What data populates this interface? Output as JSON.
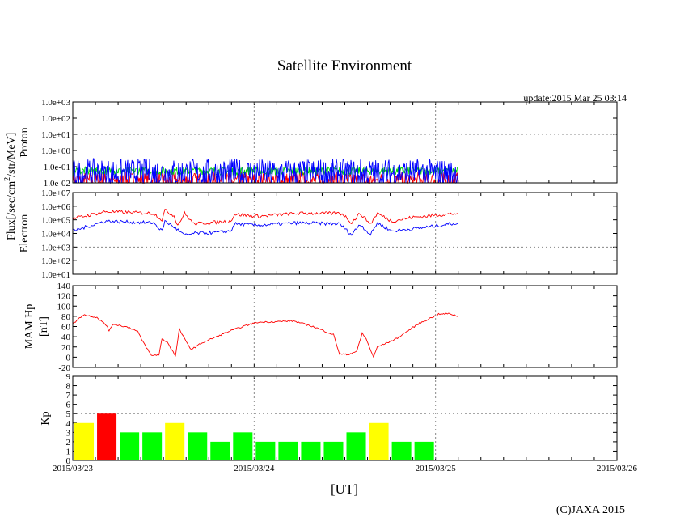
{
  "chart_data": {
    "type": "line",
    "title": "Satellite Environment",
    "update": "update:2015 Mar 25 03:14",
    "xlabel": "[UT]",
    "copyright": "(C)JAXA 2015",
    "x_ticks": [
      "2015/03/23",
      "2015/03/24",
      "2015/03/25",
      "2015/03/26"
    ],
    "x_range_hours": [
      0,
      72
    ],
    "shared_ylabel": "Flux[/sec/cm",
    "shared_ylabel_sup": "2",
    "shared_ylabel_rest": "/str/MeV]",
    "panels": [
      {
        "id": "proton",
        "ylabel": "Proton",
        "scale": "log",
        "ylim": [
          0.01,
          1000
        ],
        "ticks": [
          "1.0e-02",
          "1.0e-01",
          "1.0e+00",
          "1.0e+01",
          "1.0e+02",
          "1.0e+03"
        ],
        "grid_at": 10,
        "series": [
          {
            "name": "red",
            "color": "#ff0000",
            "level": 0.012,
            "spread": 0.6
          },
          {
            "name": "green",
            "color": "#00dd00",
            "level": 0.055,
            "spread": 0.25
          },
          {
            "name": "blue",
            "color": "#0000ff",
            "level": 0.04,
            "spread": 0.9
          }
        ]
      },
      {
        "id": "electron",
        "ylabel": "Electron",
        "scale": "log",
        "ylim": [
          10,
          10000000
        ],
        "ticks": [
          "1.0e+01",
          "1.0e+02",
          "1.0e+03",
          "1.0e+04",
          "1.0e+05",
          "1.0e+06",
          "1.0e+07"
        ],
        "grid_at": 1000,
        "series": [
          {
            "name": "red",
            "color": "#ff0000",
            "points": [
              [
                0,
                120000
              ],
              [
                4.3,
                400000
              ],
              [
                10.7,
                300000
              ],
              [
                11.8,
                100000
              ],
              [
                12.2,
                500000
              ],
              [
                13.4,
                200000
              ],
              [
                13.9,
                40000
              ],
              [
                14.8,
                300000
              ],
              [
                16,
                50000
              ],
              [
                19.3,
                70000
              ],
              [
                20.9,
                80000
              ],
              [
                21.4,
                250000
              ],
              [
                24.6,
                180000
              ],
              [
                29.9,
                300000
              ],
              [
                35.3,
                300000
              ],
              [
                35.8,
                250000
              ],
              [
                36.9,
                60000
              ],
              [
                38,
                300000
              ],
              [
                39.4,
                50000
              ],
              [
                40.3,
                300000
              ],
              [
                42.2,
                80000
              ],
              [
                44.9,
                150000
              ],
              [
                51,
                300000
              ]
            ]
          },
          {
            "name": "blue",
            "color": "#0000ff",
            "points": [
              [
                0,
                15000
              ],
              [
                4.3,
                80000
              ],
              [
                10.7,
                60000
              ],
              [
                11.8,
                15000
              ],
              [
                12.2,
                80000
              ],
              [
                13.4,
                30000
              ],
              [
                14.8,
                7000
              ],
              [
                16,
                10000
              ],
              [
                19.3,
                12000
              ],
              [
                20.9,
                15000
              ],
              [
                21.4,
                50000
              ],
              [
                24.6,
                40000
              ],
              [
                29.9,
                60000
              ],
              [
                35.3,
                50000
              ],
              [
                36.9,
                8000
              ],
              [
                38,
                50000
              ],
              [
                39.4,
                8000
              ],
              [
                40.3,
                60000
              ],
              [
                42.2,
                15000
              ],
              [
                46,
                25000
              ],
              [
                51,
                60000
              ]
            ]
          }
        ]
      },
      {
        "id": "mam",
        "ylabel": "MAM Hp",
        "ylabel2": "[nT]",
        "scale": "linear",
        "ylim": [
          -20,
          140
        ],
        "ticks": [
          "-20",
          "0",
          "20",
          "40",
          "60",
          "80",
          "100",
          "120",
          "140"
        ],
        "series": [
          {
            "name": "Hp",
            "color": "#ff0000",
            "points": [
              [
                0,
                65
              ],
              [
                1.4,
                83
              ],
              [
                3.2,
                78
              ],
              [
                4.6,
                60
              ],
              [
                4.8,
                50
              ],
              [
                5.3,
                65
              ],
              [
                7.5,
                58
              ],
              [
                8.6,
                50
              ],
              [
                9.1,
                35
              ],
              [
                10.4,
                3
              ],
              [
                11.4,
                5
              ],
              [
                11.8,
                35
              ],
              [
                12.5,
                30
              ],
              [
                13.6,
                2
              ],
              [
                14.1,
                55
              ],
              [
                15,
                30
              ],
              [
                15.7,
                15
              ],
              [
                17.1,
                28
              ],
              [
                20.6,
                50
              ],
              [
                22.5,
                60
              ],
              [
                24.3,
                68
              ],
              [
                29.2,
                71
              ],
              [
                31.8,
                60
              ],
              [
                34.5,
                44
              ],
              [
                35.3,
                6
              ],
              [
                36.4,
                5
              ],
              [
                37.6,
                12
              ],
              [
                38.3,
                47
              ],
              [
                38.8,
                36
              ],
              [
                39.8,
                0
              ],
              [
                40.3,
                20
              ],
              [
                42.8,
                36
              ],
              [
                45.7,
                65
              ],
              [
                48.4,
                84
              ],
              [
                49.9,
                85
              ],
              [
                51,
                80
              ]
            ]
          }
        ]
      },
      {
        "id": "kp",
        "ylabel": "Kp",
        "scale": "linear",
        "type": "bar",
        "ylim": [
          0,
          9
        ],
        "ticks": [
          "0",
          "1",
          "2",
          "3",
          "4",
          "5",
          "6",
          "7",
          "8",
          "9"
        ],
        "grid_at": 5,
        "bar_hours": 3,
        "values": [
          4,
          5,
          3,
          3,
          4,
          3,
          2,
          3,
          2,
          2,
          2,
          2,
          3,
          4,
          2,
          2
        ],
        "colors": {
          "low": "#00ff00",
          "mid": "#ffff00",
          "high": "#ff0000"
        }
      }
    ]
  }
}
